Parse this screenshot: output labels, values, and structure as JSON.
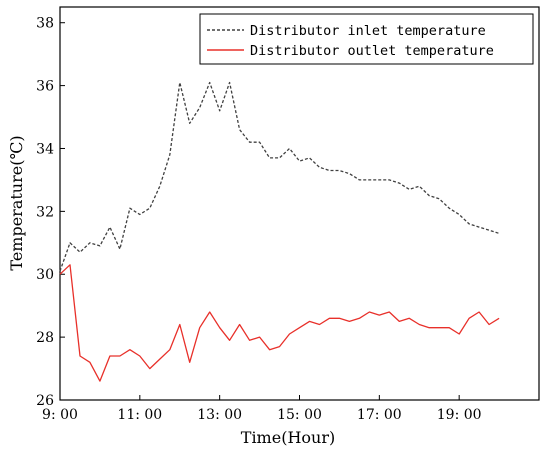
{
  "chart_data": {
    "type": "line",
    "title": "",
    "xlabel": "Time(Hour)",
    "ylabel": "Temperature(℃)",
    "xlim": [
      9.0,
      21.0
    ],
    "ylim": [
      26,
      38.5
    ],
    "x_ticks": [
      {
        "value": 9,
        "label": "9: 00"
      },
      {
        "value": 11,
        "label": "11: 00"
      },
      {
        "value": 13,
        "label": "13: 00"
      },
      {
        "value": 15,
        "label": "15: 00"
      },
      {
        "value": 17,
        "label": "17: 00"
      },
      {
        "value": 19,
        "label": "19: 00"
      }
    ],
    "y_ticks": [
      26,
      28,
      30,
      32,
      34,
      36,
      38
    ],
    "grid": false,
    "legend_position": "top-right",
    "series": [
      {
        "name": "Distributor inlet temperature",
        "color": "#404040",
        "dash": "dashed",
        "points": [
          [
            9.0,
            30.1
          ],
          [
            9.25,
            31.0
          ],
          [
            9.5,
            30.7
          ],
          [
            9.75,
            31.0
          ],
          [
            10.0,
            30.9
          ],
          [
            10.25,
            31.5
          ],
          [
            10.5,
            30.8
          ],
          [
            10.75,
            32.1
          ],
          [
            11.0,
            31.9
          ],
          [
            11.25,
            32.1
          ],
          [
            11.5,
            32.8
          ],
          [
            11.75,
            33.8
          ],
          [
            12.0,
            36.1
          ],
          [
            12.25,
            34.8
          ],
          [
            12.5,
            35.3
          ],
          [
            12.75,
            36.1
          ],
          [
            13.0,
            35.2
          ],
          [
            13.25,
            36.1
          ],
          [
            13.5,
            34.6
          ],
          [
            13.75,
            34.2
          ],
          [
            14.0,
            34.2
          ],
          [
            14.25,
            33.7
          ],
          [
            14.5,
            33.7
          ],
          [
            14.75,
            34.0
          ],
          [
            15.0,
            33.6
          ],
          [
            15.25,
            33.7
          ],
          [
            15.5,
            33.4
          ],
          [
            15.75,
            33.3
          ],
          [
            16.0,
            33.3
          ],
          [
            16.25,
            33.2
          ],
          [
            16.5,
            33.0
          ],
          [
            16.75,
            33.0
          ],
          [
            17.0,
            33.0
          ],
          [
            17.25,
            33.0
          ],
          [
            17.5,
            32.9
          ],
          [
            17.75,
            32.7
          ],
          [
            18.0,
            32.8
          ],
          [
            18.25,
            32.5
          ],
          [
            18.5,
            32.4
          ],
          [
            18.75,
            32.1
          ],
          [
            19.0,
            31.9
          ],
          [
            19.25,
            31.6
          ],
          [
            19.5,
            31.5
          ],
          [
            19.75,
            31.4
          ],
          [
            20.0,
            31.3
          ]
        ]
      },
      {
        "name": "Distributor outlet temperature",
        "color": "#e8302a",
        "dash": "solid",
        "points": [
          [
            9.0,
            30.0
          ],
          [
            9.25,
            30.3
          ],
          [
            9.5,
            27.4
          ],
          [
            9.75,
            27.2
          ],
          [
            10.0,
            26.6
          ],
          [
            10.25,
            27.4
          ],
          [
            10.5,
            27.4
          ],
          [
            10.75,
            27.6
          ],
          [
            11.0,
            27.4
          ],
          [
            11.25,
            27.0
          ],
          [
            11.5,
            27.3
          ],
          [
            11.75,
            27.6
          ],
          [
            12.0,
            28.4
          ],
          [
            12.25,
            27.2
          ],
          [
            12.5,
            28.3
          ],
          [
            12.75,
            28.8
          ],
          [
            13.0,
            28.3
          ],
          [
            13.25,
            27.9
          ],
          [
            13.5,
            28.4
          ],
          [
            13.75,
            27.9
          ],
          [
            14.0,
            28.0
          ],
          [
            14.25,
            27.6
          ],
          [
            14.5,
            27.7
          ],
          [
            14.75,
            28.1
          ],
          [
            15.0,
            28.3
          ],
          [
            15.25,
            28.5
          ],
          [
            15.5,
            28.4
          ],
          [
            15.75,
            28.6
          ],
          [
            16.0,
            28.6
          ],
          [
            16.25,
            28.5
          ],
          [
            16.5,
            28.6
          ],
          [
            16.75,
            28.8
          ],
          [
            17.0,
            28.7
          ],
          [
            17.25,
            28.8
          ],
          [
            17.5,
            28.5
          ],
          [
            17.75,
            28.6
          ],
          [
            18.0,
            28.4
          ],
          [
            18.25,
            28.3
          ],
          [
            18.5,
            28.3
          ],
          [
            18.75,
            28.3
          ],
          [
            19.0,
            28.1
          ],
          [
            19.25,
            28.6
          ],
          [
            19.5,
            28.8
          ],
          [
            19.75,
            28.4
          ],
          [
            20.0,
            28.6
          ]
        ]
      }
    ]
  }
}
